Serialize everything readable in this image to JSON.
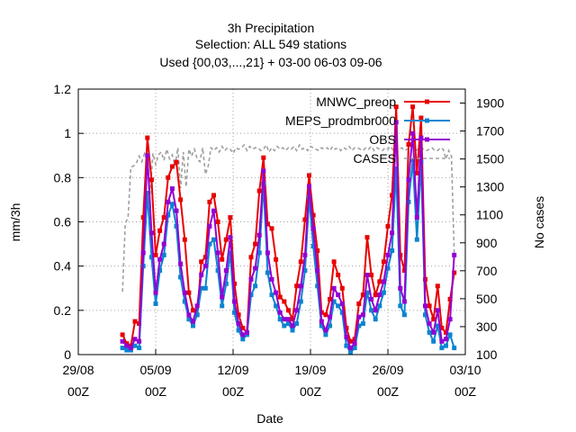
{
  "chart_data": {
    "type": "line",
    "title": [
      "3h Precipitation",
      "Selection: ALL    549 stations",
      "Used {00,03,...,21} + 03-00 06-03 09-06"
    ],
    "xlabel": "Date",
    "ylabel": "mm/3h",
    "y2label": "No cases",
    "x_start": "29/08 00Z",
    "x_end": "03/10 00Z",
    "x_ticks": [
      {
        "day": 0,
        "label": [
          "29/08",
          "00Z"
        ]
      },
      {
        "day": 7,
        "label": [
          "05/09",
          "00Z"
        ]
      },
      {
        "day": 14,
        "label": [
          "12/09",
          "00Z"
        ]
      },
      {
        "day": 21,
        "label": [
          "19/09",
          "00Z"
        ]
      },
      {
        "day": 28,
        "label": [
          "26/09",
          "00Z"
        ]
      },
      {
        "day": 35,
        "label": [
          "03/10",
          "00Z"
        ]
      }
    ],
    "ylim": [
      0,
      1.2
    ],
    "y_ticks": [
      0,
      0.2,
      0.4,
      0.6,
      0.8,
      1,
      1.2
    ],
    "y2lim": [
      100,
      2000
    ],
    "y2_ticks": [
      100,
      300,
      500,
      700,
      900,
      1100,
      1300,
      1500,
      1700,
      1900
    ],
    "grid": true,
    "legend_position": "top-right",
    "series": [
      {
        "name": "MNWC_preop",
        "axis": "y",
        "color": "#e80000",
        "marker": "square",
        "x": [
          4.0,
          4.375,
          4.75,
          5.125,
          5.5,
          5.875,
          6.25,
          6.625,
          7.0,
          7.375,
          7.75,
          8.125,
          8.5,
          8.875,
          9.25,
          9.625,
          10.0,
          10.375,
          10.75,
          11.125,
          11.5,
          11.875,
          12.25,
          12.625,
          13.0,
          13.375,
          13.75,
          14.125,
          14.5,
          14.875,
          15.25,
          15.625,
          16.0,
          16.375,
          16.75,
          17.125,
          17.5,
          17.875,
          18.25,
          18.625,
          19.0,
          19.375,
          19.75,
          20.125,
          20.5,
          20.875,
          21.25,
          21.625,
          22.0,
          22.375,
          22.75,
          23.125,
          23.5,
          23.875,
          24.25,
          24.625,
          25.0,
          25.375,
          25.75,
          26.125,
          26.5,
          26.875,
          27.25,
          27.625,
          28.0,
          28.375,
          28.75,
          29.125,
          29.5,
          29.875,
          30.25,
          30.625,
          31.0,
          31.375,
          31.75,
          32.125,
          32.5,
          32.875,
          33.25,
          33.625,
          34.0
        ],
        "y": [
          0.09,
          0.05,
          0.04,
          0.15,
          0.14,
          0.62,
          0.98,
          0.79,
          0.45,
          0.56,
          0.62,
          0.8,
          0.85,
          0.87,
          0.7,
          0.52,
          0.28,
          0.2,
          0.18,
          0.42,
          0.44,
          0.69,
          0.72,
          0.6,
          0.43,
          0.52,
          0.62,
          0.32,
          0.18,
          0.12,
          0.1,
          0.44,
          0.5,
          0.74,
          0.89,
          0.59,
          0.57,
          0.43,
          0.26,
          0.24,
          0.2,
          0.16,
          0.31,
          0.42,
          0.61,
          0.81,
          0.63,
          0.47,
          0.19,
          0.18,
          0.25,
          0.42,
          0.36,
          0.3,
          0.12,
          0.06,
          0.07,
          0.23,
          0.27,
          0.53,
          0.36,
          0.27,
          0.33,
          0.42,
          0.58,
          0.72,
          1.12,
          0.45,
          0.38,
          0.95,
          1.12,
          0.82,
          1.07,
          0.34,
          0.22,
          0.16,
          0.31,
          0.12,
          0.1,
          0.25,
          0.37
        ]
      },
      {
        "name": "MEPS_prodmbr000",
        "axis": "y",
        "color": "#0a84d0",
        "marker": "square",
        "x": [
          4.0,
          4.375,
          4.75,
          5.125,
          5.5,
          5.875,
          6.25,
          6.625,
          7.0,
          7.375,
          7.75,
          8.125,
          8.5,
          8.875,
          9.25,
          9.625,
          10.0,
          10.375,
          10.75,
          11.125,
          11.5,
          11.875,
          12.25,
          12.625,
          13.0,
          13.375,
          13.75,
          14.125,
          14.5,
          14.875,
          15.25,
          15.625,
          16.0,
          16.375,
          16.75,
          17.125,
          17.5,
          17.875,
          18.25,
          18.625,
          19.0,
          19.375,
          19.75,
          20.125,
          20.5,
          20.875,
          21.25,
          21.625,
          22.0,
          22.375,
          22.75,
          23.125,
          23.5,
          23.875,
          24.25,
          24.625,
          25.0,
          25.375,
          25.75,
          26.125,
          26.5,
          26.875,
          27.25,
          27.625,
          28.0,
          28.375,
          28.75,
          29.125,
          29.5,
          29.875,
          30.25,
          30.625,
          31.0,
          31.375,
          31.75,
          32.125,
          32.5,
          32.875,
          33.25,
          33.625,
          34.0
        ],
        "y": [
          0.03,
          0.02,
          0.02,
          0.04,
          0.03,
          0.4,
          0.73,
          0.44,
          0.23,
          0.38,
          0.45,
          0.63,
          0.68,
          0.58,
          0.35,
          0.24,
          0.16,
          0.13,
          0.18,
          0.3,
          0.3,
          0.5,
          0.52,
          0.38,
          0.22,
          0.32,
          0.46,
          0.19,
          0.11,
          0.07,
          0.09,
          0.27,
          0.31,
          0.46,
          0.77,
          0.37,
          0.27,
          0.22,
          0.16,
          0.13,
          0.14,
          0.11,
          0.14,
          0.24,
          0.38,
          0.71,
          0.49,
          0.31,
          0.13,
          0.09,
          0.13,
          0.24,
          0.22,
          0.19,
          0.04,
          0.01,
          0.03,
          0.13,
          0.14,
          0.28,
          0.2,
          0.16,
          0.22,
          0.28,
          0.39,
          0.47,
          0.84,
          0.22,
          0.18,
          0.69,
          0.88,
          0.52,
          0.87,
          0.18,
          0.1,
          0.06,
          0.13,
          0.03,
          0.04,
          0.09,
          0.03
        ]
      },
      {
        "name": "OBS",
        "axis": "y",
        "color": "#9400d3",
        "marker": "square",
        "x": [
          4.0,
          4.375,
          4.75,
          5.125,
          5.5,
          5.875,
          6.25,
          6.625,
          7.0,
          7.375,
          7.75,
          8.125,
          8.5,
          8.875,
          9.25,
          9.625,
          10.0,
          10.375,
          10.75,
          11.125,
          11.5,
          11.875,
          12.25,
          12.625,
          13.0,
          13.375,
          13.75,
          14.125,
          14.5,
          14.875,
          15.25,
          15.625,
          16.0,
          16.375,
          16.75,
          17.125,
          17.5,
          17.875,
          18.25,
          18.625,
          19.0,
          19.375,
          19.75,
          20.125,
          20.5,
          20.875,
          21.25,
          21.625,
          22.0,
          22.375,
          22.75,
          23.125,
          23.5,
          23.875,
          24.25,
          24.625,
          25.0,
          25.375,
          25.75,
          26.125,
          26.5,
          26.875,
          27.25,
          27.625,
          28.0,
          28.375,
          28.75,
          29.125,
          29.5,
          29.875,
          30.25,
          30.625,
          31.0,
          31.375,
          31.75,
          32.125,
          32.5,
          32.875,
          33.25,
          33.625,
          34.0
        ],
        "y": [
          0.06,
          0.04,
          0.03,
          0.07,
          0.06,
          0.46,
          0.9,
          0.55,
          0.28,
          0.43,
          0.5,
          0.69,
          0.75,
          0.65,
          0.41,
          0.28,
          0.18,
          0.15,
          0.22,
          0.36,
          0.4,
          0.58,
          0.65,
          0.46,
          0.26,
          0.38,
          0.53,
          0.24,
          0.14,
          0.09,
          0.1,
          0.34,
          0.39,
          0.54,
          0.83,
          0.46,
          0.34,
          0.28,
          0.19,
          0.16,
          0.16,
          0.13,
          0.2,
          0.31,
          0.45,
          0.76,
          0.57,
          0.38,
          0.15,
          0.11,
          0.17,
          0.3,
          0.27,
          0.23,
          0.08,
          0.03,
          0.05,
          0.17,
          0.18,
          0.36,
          0.25,
          0.2,
          0.27,
          0.33,
          0.45,
          0.55,
          1.05,
          0.3,
          0.24,
          0.79,
          1.0,
          0.62,
          0.98,
          0.22,
          0.14,
          0.1,
          0.2,
          0.06,
          0.07,
          0.16,
          0.45
        ]
      },
      {
        "name": "CASES",
        "axis": "y2",
        "color": "#a0a0a0",
        "dash": true,
        "x": [
          4.0,
          4.25,
          4.5,
          4.75,
          5.0,
          5.25,
          5.5,
          5.75,
          6.0,
          6.25,
          6.5,
          6.75,
          7.0,
          7.25,
          7.5,
          7.75,
          8.0,
          8.25,
          8.5,
          8.75,
          9.0,
          9.25,
          9.5,
          9.75,
          10.0,
          10.25,
          10.5,
          10.75,
          11.0,
          11.25,
          11.5,
          11.75,
          12.0,
          12.25,
          12.5,
          12.75,
          13.0,
          13.25,
          13.5,
          13.75,
          14.0,
          14.25,
          14.5,
          14.75,
          15.0,
          15.25,
          15.5,
          15.75,
          16.0,
          16.25,
          16.5,
          16.75,
          17.0,
          17.25,
          17.5,
          17.75,
          18.0,
          18.25,
          18.5,
          18.75,
          19.0,
          19.25,
          19.5,
          19.75,
          20.0,
          20.25,
          20.5,
          20.75,
          21.0,
          21.25,
          21.5,
          21.75,
          22.0,
          22.25,
          22.5,
          22.75,
          23.0,
          23.25,
          23.5,
          23.75,
          24.0,
          24.25,
          24.5,
          24.75,
          25.0,
          25.25,
          25.5,
          25.75,
          26.0,
          26.25,
          26.5,
          26.75,
          27.0,
          27.25,
          27.5,
          27.75,
          28.0,
          28.25,
          28.5,
          28.75,
          29.0,
          29.25,
          29.5,
          29.75,
          30.0,
          30.25,
          30.5,
          30.75,
          31.0,
          31.25,
          31.5,
          31.75,
          32.0,
          32.25,
          32.5,
          32.75,
          33.0,
          33.25,
          33.5,
          33.75,
          34.0
        ],
        "y": [
          550,
          1040,
          1080,
          1440,
          1450,
          1470,
          1520,
          1480,
          1540,
          1500,
          1250,
          1540,
          1460,
          1530,
          1550,
          1490,
          1570,
          1500,
          1530,
          1450,
          1580,
          1290,
          1550,
          1300,
          1570,
          1520,
          1570,
          1500,
          1480,
          1580,
          1390,
          1450,
          1580,
          1560,
          1580,
          1550,
          1590,
          1560,
          1580,
          1570,
          1540,
          1580,
          1570,
          1580,
          1600,
          1560,
          1590,
          1570,
          1580,
          1580,
          1560,
          1570,
          1600,
          1550,
          1580,
          1560,
          1590,
          1570,
          1580,
          1560,
          1580,
          1570,
          1590,
          1560,
          1600,
          1570,
          1580,
          1560,
          1590,
          1580,
          1570,
          1560,
          1580,
          1570,
          1580,
          1560,
          1590,
          1570,
          1580,
          1560,
          1580,
          1570,
          1590,
          1560,
          1580,
          1580,
          1570,
          1560,
          1580,
          1570,
          1590,
          1560,
          1580,
          1570,
          1560,
          1580,
          1570,
          1590,
          1560,
          1580,
          1570,
          1580,
          1560,
          1570,
          1580,
          1590,
          1560,
          1570,
          1580,
          1570,
          1560,
          1570,
          1580,
          1560,
          1560,
          1580,
          1570,
          1500,
          1560,
          1520,
          820
        ]
      }
    ]
  }
}
